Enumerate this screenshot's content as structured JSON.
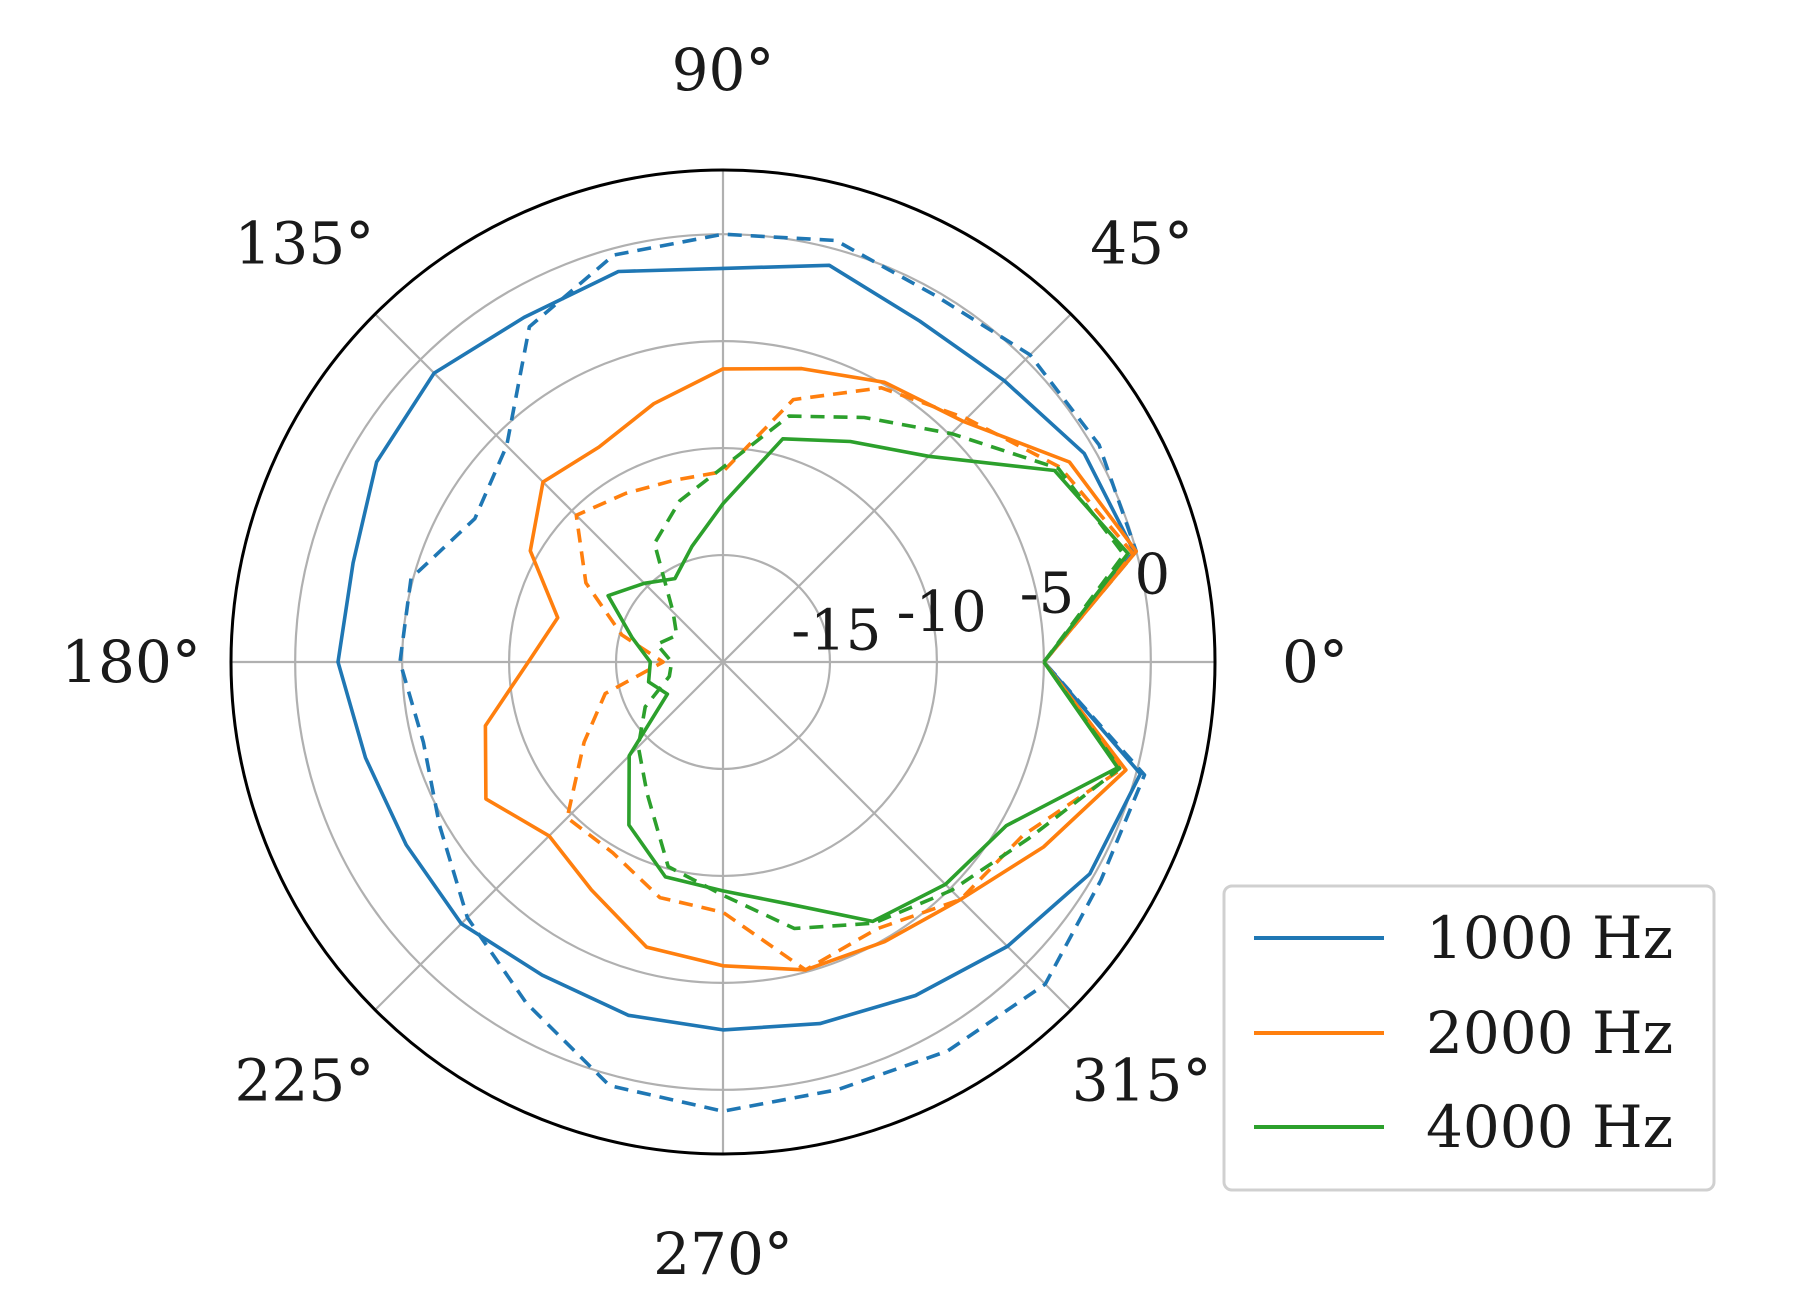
{
  "chart_data": {
    "type": "line",
    "projection": "polar",
    "theta_unit": "degrees",
    "theta_ticks": [
      "0°",
      "45°",
      "90°",
      "135°",
      "180°",
      "225°",
      "270°",
      "315°"
    ],
    "r_ticks": [
      "-15",
      "-10",
      "-5",
      "0"
    ],
    "r_tick_values": [
      -15,
      -10,
      -5,
      0
    ],
    "rlim": [
      -20,
      3
    ],
    "grid": true,
    "legend": "lower-right",
    "colors": {
      "1000": "#1f77b4",
      "2000": "#ff7f0e",
      "4000": "#2ca02c"
    },
    "theta": [
      0,
      15,
      30,
      45,
      60,
      75,
      90,
      105,
      120,
      135,
      150,
      165,
      180,
      195,
      210,
      225,
      240,
      255,
      270,
      285,
      300,
      315,
      330,
      345
    ],
    "series": [
      {
        "name": "1000 Hz",
        "color": "#1f77b4",
        "style": "solid",
        "values": [
          -5,
          -0.1,
          -0.5,
          -1.4,
          -1.6,
          -0.8,
          -1.6,
          -1.1,
          -1.4,
          -0.9,
          -1.3,
          -2.1,
          -2.0,
          -2.7,
          -2.9,
          -2.7,
          -3.1,
          -2.9,
          -2.8,
          -2.5,
          -2.0,
          -1.2,
          -0.2,
          0.2
        ]
      },
      {
        "name": "1000 Hz (dashed)",
        "color": "#1f77b4",
        "style": "dashed",
        "values": [
          -5,
          0,
          0.3,
          0.3,
          -0.2,
          0.4,
          0.0,
          -0.3,
          -1.9,
          -5.7,
          -6.6,
          -4.9,
          -4.9,
          -5.5,
          -4.7,
          -3.1,
          -1.6,
          0.5,
          1.0,
          0.7,
          1.0,
          1.3,
          0.4,
          0.4
        ]
      },
      {
        "name": "2000 Hz",
        "color": "#ff7f0e",
        "style": "solid",
        "values": [
          -5,
          0.0,
          -1.3,
          -4.1,
          -4.9,
          -5.8,
          -6.3,
          -7.5,
          -8.4,
          -8.1,
          -9.6,
          -12.0,
          -10.9,
          -8.5,
          -7.2,
          -8.5,
          -7.7,
          -6.2,
          -5.8,
          -5.1,
          -4.9,
          -4.3,
          -2.7,
          -0.5
        ]
      },
      {
        "name": "2000 Hz (dashed)",
        "color": "#ff7f0e",
        "style": "dashed",
        "values": [
          -5,
          -0.2,
          -1.8,
          -3.9,
          -5.2,
          -7.3,
          -11.1,
          -11.2,
          -10.9,
          -10.3,
          -12.6,
          -15.1,
          -17.2,
          -14.3,
          -12.5,
          -9.7,
          -9.7,
          -8.6,
          -8.3,
          -5.1,
          -5.6,
          -4.3,
          -3.8,
          -0.7
        ]
      },
      {
        "name": "4000 Hz",
        "color": "#2ca02c",
        "style": "solid",
        "values": [
          -5,
          -0.4,
          -2.1,
          -6.4,
          -8.1,
          -9.2,
          -12.6,
          -14.4,
          -15.5,
          -14.8,
          -13.8,
          -15.6,
          -16.6,
          -16.4,
          -17.0,
          -13.8,
          -11.2,
          -9.6,
          -9.3,
          -8.3,
          -6.0,
          -5.3,
          -4.7,
          -0.9
        ]
      },
      {
        "name": "4000 Hz (dashed)",
        "color": "#2ca02c",
        "style": "dashed",
        "values": [
          -5,
          -0.6,
          -1.9,
          -4.9,
          -6.8,
          -8.1,
          -10.9,
          -12.2,
          -13.6,
          -16.7,
          -17.5,
          -16.8,
          -17.6,
          -17.4,
          -15.8,
          -14.4,
          -12.9,
          -10.1,
          -9.1,
          -7.1,
          -5.9,
          -4.9,
          -3.5,
          -0.8
        ]
      }
    ],
    "legend_entries": [
      {
        "label": "1000 Hz",
        "color": "#1f77b4"
      },
      {
        "label": "2000 Hz",
        "color": "#ff7f0e"
      },
      {
        "label": "4000 Hz",
        "color": "#2ca02c"
      }
    ]
  }
}
